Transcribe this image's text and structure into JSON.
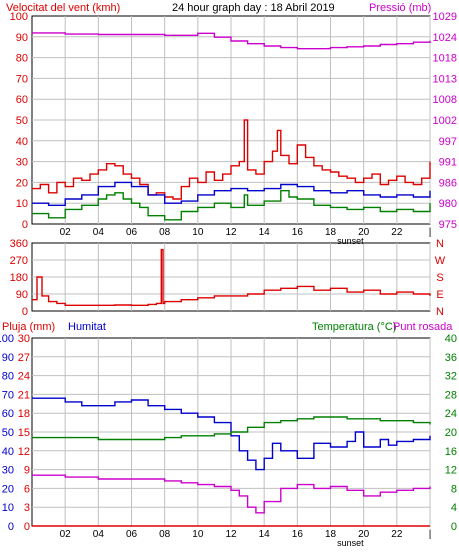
{
  "header": {
    "left_label": "Velocitat del vent (kmh)",
    "title": "24 hour graph day : 18 Abril 2019",
    "right_label": "Pressió (mb)"
  },
  "colors": {
    "red": "#dd0000",
    "blue": "#0000cc",
    "green": "#008000",
    "magenta": "#cc00cc",
    "grid": "#c0c0c0",
    "axis": "#000000"
  },
  "x_ticks": [
    "02",
    "04",
    "06",
    "08",
    "10",
    "12",
    "14",
    "16",
    "18",
    "20",
    "22",
    "|"
  ],
  "sunset_label": "sunset",
  "panel2_right_labels": [
    "N",
    "W",
    "S",
    "E",
    "N"
  ],
  "panel3": {
    "left_label_red": "Pluja (mm)",
    "left_label_blue": "Humitat",
    "right_label_green": "Temperatura (°C)",
    "right_label_magenta": "Punt rosada"
  },
  "chart_data": [
    {
      "type": "line",
      "title": "24 hour graph day : 18 Abril 2019",
      "xlabel": "",
      "ylabel": "Velocitat del vent (kmh)",
      "y_ticks": [
        "0",
        "10",
        "20",
        "30",
        "40",
        "50",
        "60",
        "70",
        "80",
        "90",
        "100"
      ],
      "ylim": [
        0,
        100
      ],
      "y2label": "Pressió (mb)",
      "y2_ticks": [
        "975",
        "980",
        "986",
        "991",
        "997",
        "1002",
        "1008",
        "1013",
        "1018",
        "1024",
        "1029"
      ],
      "y2lim": [
        975,
        1029
      ],
      "grid": true,
      "series": [
        {
          "name": "Velocitat del vent (kmh)",
          "color": "red",
          "axis": "left",
          "points": [
            [
              0,
              17
            ],
            [
              0.5,
              19
            ],
            [
              1,
              15
            ],
            [
              1.5,
              20
            ],
            [
              2,
              18
            ],
            [
              2.5,
              22
            ],
            [
              3,
              21
            ],
            [
              3.5,
              24
            ],
            [
              4,
              26
            ],
            [
              4.5,
              29
            ],
            [
              5,
              28
            ],
            [
              5.5,
              24
            ],
            [
              6,
              22
            ],
            [
              6.5,
              19
            ],
            [
              7,
              14
            ],
            [
              7.5,
              15
            ],
            [
              8,
              13
            ],
            [
              8.5,
              12
            ],
            [
              9,
              18
            ],
            [
              9.5,
              22
            ],
            [
              10,
              20
            ],
            [
              10.5,
              25
            ],
            [
              11,
              21
            ],
            [
              11.5,
              24
            ],
            [
              12,
              28
            ],
            [
              12.5,
              30
            ],
            [
              12.8,
              50
            ],
            [
              13,
              26
            ],
            [
              13.5,
              24
            ],
            [
              14,
              30
            ],
            [
              14.5,
              35
            ],
            [
              14.8,
              45
            ],
            [
              15,
              33
            ],
            [
              15.5,
              29
            ],
            [
              16,
              38
            ],
            [
              16.5,
              32
            ],
            [
              17,
              28
            ],
            [
              17.5,
              26
            ],
            [
              18,
              25
            ],
            [
              18.5,
              23
            ],
            [
              19,
              22
            ],
            [
              19.5,
              20
            ],
            [
              20,
              22
            ],
            [
              20.5,
              24
            ],
            [
              21,
              19
            ],
            [
              21.5,
              21
            ],
            [
              22,
              23
            ],
            [
              22.5,
              20
            ],
            [
              23,
              19
            ],
            [
              23.5,
              22
            ],
            [
              24,
              30
            ]
          ]
        },
        {
          "name": "",
          "color": "blue",
          "axis": "left",
          "points": [
            [
              0,
              10
            ],
            [
              1,
              9
            ],
            [
              2,
              12
            ],
            [
              3,
              14
            ],
            [
              4,
              18
            ],
            [
              5,
              20
            ],
            [
              6,
              18
            ],
            [
              7,
              14
            ],
            [
              8,
              10
            ],
            [
              9,
              11
            ],
            [
              10,
              14
            ],
            [
              11,
              16
            ],
            [
              12,
              17
            ],
            [
              13,
              16
            ],
            [
              14,
              17
            ],
            [
              15,
              19
            ],
            [
              16,
              18
            ],
            [
              17,
              16
            ],
            [
              18,
              15
            ],
            [
              19,
              16
            ],
            [
              20,
              14
            ],
            [
              21,
              13
            ],
            [
              22,
              14
            ],
            [
              23,
              13
            ],
            [
              24,
              16
            ]
          ]
        },
        {
          "name": "",
          "color": "green",
          "axis": "left",
          "points": [
            [
              0,
              5
            ],
            [
              1,
              3
            ],
            [
              2,
              7
            ],
            [
              3,
              9
            ],
            [
              4,
              12
            ],
            [
              4.5,
              14
            ],
            [
              5,
              15
            ],
            [
              5.5,
              12
            ],
            [
              6,
              10
            ],
            [
              6.5,
              8
            ],
            [
              7,
              4
            ],
            [
              8,
              2
            ],
            [
              9,
              6
            ],
            [
              10,
              8
            ],
            [
              11,
              10
            ],
            [
              12,
              8
            ],
            [
              12.8,
              14
            ],
            [
              13,
              9
            ],
            [
              14,
              11
            ],
            [
              15,
              16
            ],
            [
              15.5,
              13
            ],
            [
              16,
              12
            ],
            [
              17,
              9
            ],
            [
              18,
              8
            ],
            [
              19,
              7
            ],
            [
              20,
              8
            ],
            [
              21,
              6
            ],
            [
              22,
              7
            ],
            [
              23,
              6
            ],
            [
              24,
              10
            ]
          ]
        },
        {
          "name": "Pressió (mb)",
          "color": "magenta",
          "axis": "right",
          "points": [
            [
              0,
              1024.6
            ],
            [
              2,
              1024.3
            ],
            [
              4,
              1024.2
            ],
            [
              6,
              1024.2
            ],
            [
              8,
              1024.0
            ],
            [
              9,
              1024.0
            ],
            [
              10,
              1024.5
            ],
            [
              11,
              1023.5
            ],
            [
              12,
              1022.5
            ],
            [
              13,
              1021.8
            ],
            [
              14,
              1021.2
            ],
            [
              15,
              1020.8
            ],
            [
              16,
              1020.5
            ],
            [
              17,
              1020.5
            ],
            [
              18,
              1020.8
            ],
            [
              19,
              1021.0
            ],
            [
              20,
              1021.2
            ],
            [
              21,
              1021.6
            ],
            [
              22,
              1021.8
            ],
            [
              23,
              1022.2
            ],
            [
              24,
              1022.6
            ]
          ]
        }
      ]
    },
    {
      "type": "line",
      "title": "",
      "ylabel": "",
      "y_ticks": [
        "0",
        "90",
        "180",
        "270",
        "360"
      ],
      "ylim": [
        0,
        360
      ],
      "grid": true,
      "series": [
        {
          "name": "",
          "color": "red",
          "points": [
            [
              0,
              60
            ],
            [
              0.3,
              180
            ],
            [
              0.6,
              80
            ],
            [
              1,
              50
            ],
            [
              1.5,
              40
            ],
            [
              2,
              30
            ],
            [
              3,
              30
            ],
            [
              4,
              30
            ],
            [
              5,
              32
            ],
            [
              6,
              30
            ],
            [
              7,
              35
            ],
            [
              7.5,
              40
            ],
            [
              7.8,
              325
            ],
            [
              7.9,
              40
            ],
            [
              8,
              50
            ],
            [
              9,
              60
            ],
            [
              10,
              70
            ],
            [
              11,
              80
            ],
            [
              12,
              80
            ],
            [
              13,
              90
            ],
            [
              14,
              110
            ],
            [
              15,
              120
            ],
            [
              16,
              130
            ],
            [
              17,
              110
            ],
            [
              18,
              120
            ],
            [
              19,
              100
            ],
            [
              20,
              110
            ],
            [
              21,
              90
            ],
            [
              22,
              100
            ],
            [
              23,
              90
            ],
            [
              24,
              80
            ]
          ]
        }
      ]
    },
    {
      "type": "line",
      "title": "",
      "ylabel": "Pluja (mm)",
      "y_ticks": [
        "0",
        "10",
        "20",
        "30",
        "40",
        "50",
        "60",
        "70",
        "80",
        "90",
        "100"
      ],
      "ylim": [
        0,
        100
      ],
      "y_ticks_humitat": [
        "0",
        "3",
        "6",
        "9",
        "12",
        "15",
        "18",
        "21",
        "24",
        "27",
        "30"
      ],
      "y2label": "Temperatura (°C)",
      "y2_ticks": [
        "0",
        "4",
        "8",
        "12",
        "16",
        "20",
        "24",
        "28",
        "32",
        "36",
        "40"
      ],
      "y2lim": [
        0,
        40
      ],
      "grid": true,
      "series": [
        {
          "name": "Pluja (mm)",
          "color": "red",
          "axis": "left",
          "points": [
            [
              0,
              0
            ],
            [
              24,
              0
            ]
          ]
        },
        {
          "name": "Humitat",
          "color": "blue",
          "axis": "left",
          "points": [
            [
              0,
              68
            ],
            [
              2,
              66
            ],
            [
              3,
              64
            ],
            [
              4,
              64
            ],
            [
              5,
              66
            ],
            [
              6,
              67
            ],
            [
              7,
              64
            ],
            [
              8,
              62
            ],
            [
              9,
              60
            ],
            [
              10,
              58
            ],
            [
              11,
              55
            ],
            [
              12,
              48
            ],
            [
              12.5,
              40
            ],
            [
              13,
              35
            ],
            [
              13.5,
              30
            ],
            [
              14,
              36
            ],
            [
              14.5,
              44
            ],
            [
              15,
              40
            ],
            [
              16,
              36
            ],
            [
              17,
              44
            ],
            [
              18,
              42
            ],
            [
              19,
              45
            ],
            [
              19.5,
              50
            ],
            [
              20,
              42
            ],
            [
              21,
              46
            ],
            [
              21.5,
              43
            ],
            [
              22,
              45
            ],
            [
              23,
              46
            ],
            [
              24,
              48
            ]
          ]
        },
        {
          "name": "Temperatura (°C)",
          "color": "green",
          "axis": "right",
          "points": [
            [
              0,
              18.8
            ],
            [
              2,
              18.8
            ],
            [
              4,
              18.4
            ],
            [
              6,
              18.4
            ],
            [
              8,
              18.8
            ],
            [
              9,
              19.2
            ],
            [
              10,
              19.2
            ],
            [
              11,
              19.6
            ],
            [
              12,
              20.0
            ],
            [
              13,
              21.0
            ],
            [
              14,
              22.0
            ],
            [
              15,
              22.4
            ],
            [
              16,
              22.8
            ],
            [
              17,
              23.2
            ],
            [
              18,
              23.2
            ],
            [
              19,
              22.8
            ],
            [
              20,
              22.8
            ],
            [
              21,
              22.4
            ],
            [
              22,
              22.4
            ],
            [
              23,
              22.0
            ],
            [
              24,
              21.6
            ]
          ]
        },
        {
          "name": "Punt rosada",
          "color": "magenta",
          "axis": "right",
          "points": [
            [
              0,
              10.8
            ],
            [
              2,
              10.4
            ],
            [
              4,
              10.0
            ],
            [
              6,
              10.0
            ],
            [
              8,
              9.6
            ],
            [
              9,
              9.2
            ],
            [
              10,
              8.8
            ],
            [
              11,
              8.4
            ],
            [
              12,
              7.6
            ],
            [
              12.5,
              6.4
            ],
            [
              13,
              4.0
            ],
            [
              13.5,
              2.8
            ],
            [
              14,
              5.2
            ],
            [
              15,
              8.0
            ],
            [
              16,
              8.8
            ],
            [
              17,
              8.0
            ],
            [
              18,
              8.4
            ],
            [
              19,
              7.6
            ],
            [
              20,
              6.4
            ],
            [
              21,
              7.2
            ],
            [
              22,
              7.6
            ],
            [
              23,
              8.0
            ],
            [
              24,
              8.4
            ]
          ]
        }
      ]
    }
  ]
}
